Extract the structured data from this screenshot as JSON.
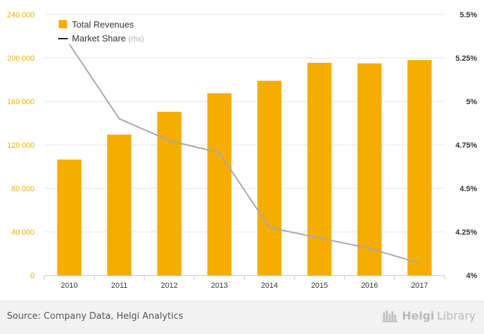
{
  "chart_data": {
    "type": "bar",
    "categories": [
      "2010",
      "2011",
      "2012",
      "2013",
      "2014",
      "2015",
      "2016",
      "2017"
    ],
    "series": [
      {
        "name": "Total Revenues",
        "type": "bar",
        "axis": "left",
        "color": "#f5ad00",
        "values": [
          106500,
          129500,
          150500,
          167500,
          179000,
          195500,
          195000,
          198000
        ]
      },
      {
        "name": "Market Share",
        "type": "line",
        "axis": "right",
        "color": "#a8a8a8",
        "values": [
          5.33,
          4.9,
          4.775,
          4.705,
          4.275,
          4.215,
          4.155,
          4.07
        ]
      }
    ],
    "legend": {
      "entries": [
        {
          "label": "Total Revenues",
          "suffix": ""
        },
        {
          "label": "Market Share",
          "suffix": "(rhs)"
        }
      ],
      "placement": "top-left"
    },
    "left_axis": {
      "ylim": [
        0,
        240000
      ],
      "ticks": [
        {
          "value": 0,
          "label": "0"
        },
        {
          "value": 40000,
          "label": "40 000"
        },
        {
          "value": 80000,
          "label": "80 000"
        },
        {
          "value": 120000,
          "label": "120 000"
        },
        {
          "value": 160000,
          "label": "160 000"
        },
        {
          "value": 200000,
          "label": "200 000"
        },
        {
          "value": 240000,
          "label": "240 000"
        }
      ],
      "tick_color": "#f5ad00"
    },
    "right_axis": {
      "ylim": [
        4.0,
        5.5
      ],
      "ticks": [
        {
          "value": 4.0,
          "label": "4%"
        },
        {
          "value": 4.25,
          "label": "4.25%"
        },
        {
          "value": 4.5,
          "label": "4.5%"
        },
        {
          "value": 4.75,
          "label": "4.75%"
        },
        {
          "value": 5.0,
          "label": "5%"
        },
        {
          "value": 5.25,
          "label": "5.25%"
        },
        {
          "value": 5.5,
          "label": "5.5%"
        }
      ]
    },
    "grid": true
  },
  "footer": {
    "source": "Source: Company Data, Helgi Analytics",
    "brand_bold": "Helgi",
    "brand_light": "Library"
  }
}
